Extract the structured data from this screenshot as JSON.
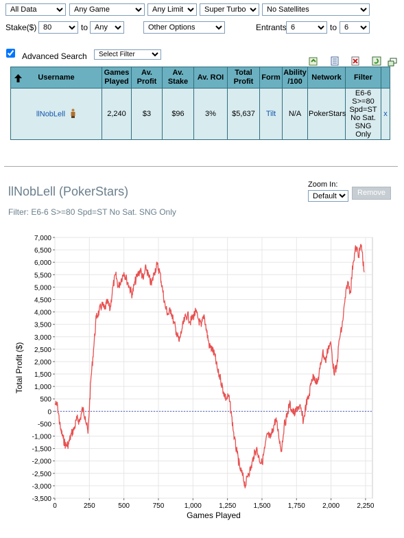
{
  "filters": {
    "data_range": "All Data",
    "game": "Any Game",
    "limit": "Any Limit",
    "speed": "Super Turbo",
    "satellites": "No Satellites",
    "stake_label": "Stake($)",
    "stake_min": "80",
    "to1": "to",
    "stake_max": "Any",
    "other_options": "Other Options",
    "entrants_label": "Entrants",
    "entrants_min": "6",
    "to2": "to",
    "entrants_max": "6",
    "advanced_search_label": "Advanced Search",
    "select_filter": "Select Filter"
  },
  "table": {
    "headers": {
      "username": "Username",
      "games_played": "Games Played",
      "av_profit": "Av. Profit",
      "av_stake": "Av. Stake",
      "av_roi": "Av. ROI",
      "total_profit": "Total Profit",
      "form": "Form",
      "ability": "Ability /100",
      "network": "Network",
      "filter": "Filter"
    },
    "row": {
      "username": "llNobLell",
      "games_played": "2,240",
      "av_profit": "$3",
      "av_stake": "$96",
      "av_roi": "3%",
      "total_profit": "$5,637",
      "form": "Tilt",
      "ability": "N/A",
      "network": "PokerStars",
      "filter": "E6-6 S>=80 Spd=ST No Sat. SNG Only",
      "remove_x": "x"
    }
  },
  "profile": {
    "title": "llNobLell (PokerStars)",
    "filter_text": "Filter: E6-6 S>=80 Spd=ST No Sat. SNG Only",
    "zoom_label": "Zoom In:",
    "zoom_value": "Default",
    "remove_label": "Remove"
  },
  "colors": {
    "header_bg": "#6ab0c0",
    "cell_bg": "#d8ebef",
    "line": "#e85050",
    "zero_line": "#5060c0"
  },
  "chart_data": {
    "type": "line",
    "xlabel": "Games Played",
    "ylabel": "Total Profit ($)",
    "xlim": [
      0,
      2300
    ],
    "ylim": [
      -3500,
      7000
    ],
    "x_ticks": [
      "0",
      "250",
      "500",
      "750",
      "1,000",
      "1,250",
      "1,500",
      "1,750",
      "2,000",
      "2,250"
    ],
    "y_ticks": [
      "7,000",
      "6,500",
      "6,000",
      "5,500",
      "5,000",
      "4,500",
      "4,000",
      "3,500",
      "3,000",
      "2,500",
      "2,000",
      "1,500",
      "1,000",
      "500",
      "0",
      "-500",
      "-1,000",
      "-1,500",
      "-2,000",
      "-2,500",
      "-3,000",
      "-3,500"
    ],
    "grid": true,
    "series": [
      {
        "x": [
          0,
          20,
          40,
          60,
          80,
          100,
          120,
          140,
          160,
          180,
          200,
          220,
          240,
          260,
          280,
          300,
          320,
          340,
          360,
          380,
          400,
          420,
          440,
          460,
          480,
          500,
          520,
          540,
          560,
          580,
          600,
          620,
          640,
          660,
          680,
          700,
          720,
          740,
          760,
          780,
          800,
          820,
          840,
          860,
          880,
          900,
          920,
          940,
          960,
          980,
          1000,
          1020,
          1040,
          1060,
          1080,
          1100,
          1120,
          1140,
          1160,
          1180,
          1200,
          1220,
          1240,
          1260,
          1280,
          1300,
          1320,
          1340,
          1360,
          1380,
          1400,
          1420,
          1440,
          1460,
          1480,
          1500,
          1520,
          1540,
          1560,
          1580,
          1600,
          1620,
          1640,
          1660,
          1680,
          1700,
          1720,
          1740,
          1760,
          1780,
          1800,
          1820,
          1840,
          1860,
          1880,
          1900,
          1920,
          1940,
          1960,
          1980,
          2000,
          2020,
          2040,
          2060,
          2080,
          2100,
          2120,
          2140,
          2160,
          2180,
          2200,
          2220,
          2240
        ],
        "y": [
          300,
          200,
          -700,
          -1100,
          -1400,
          -1300,
          -900,
          -700,
          -300,
          -400,
          100,
          -200,
          -900,
          1200,
          2500,
          3800,
          4000,
          4300,
          4100,
          4400,
          4100,
          5000,
          5500,
          5000,
          5300,
          5600,
          5300,
          5000,
          4700,
          5200,
          5500,
          5700,
          5300,
          5800,
          5400,
          5100,
          5600,
          5900,
          5600,
          4900,
          4200,
          3900,
          4100,
          3600,
          3200,
          2800,
          3300,
          3700,
          3900,
          3600,
          3800,
          4000,
          3700,
          3400,
          3900,
          3200,
          2600,
          2500,
          2200,
          1600,
          1300,
          800,
          500,
          600,
          -200,
          -1100,
          -1700,
          -2300,
          -2600,
          -3000,
          -2500,
          -2300,
          -1800,
          -1500,
          -1900,
          -2100,
          -1500,
          -900,
          -1100,
          -700,
          -300,
          -900,
          -1600,
          -600,
          -200,
          300,
          0,
          -100,
          200,
          100,
          -400,
          300,
          600,
          1300,
          1400,
          1100,
          1700,
          2400,
          2000,
          2600,
          2700,
          1600,
          1700,
          2900,
          3400,
          4400,
          5200,
          4800,
          6000,
          6600,
          6300,
          6700,
          5600
        ]
      }
    ]
  }
}
